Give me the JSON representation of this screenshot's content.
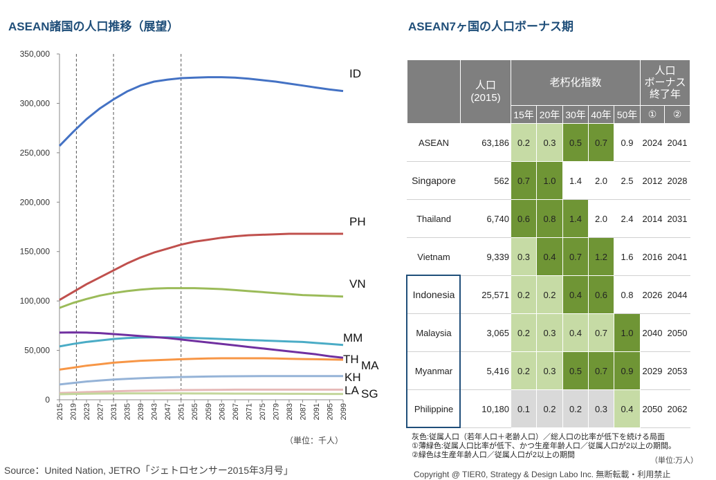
{
  "left_title": "ASEAN諸国の人口推移（展望）",
  "right_title": "ASEAN7ヶ国の人口ボーナス期",
  "chart_data": {
    "type": "line",
    "title": "ASEAN諸国の人口推移（展望）",
    "x": [
      2015,
      2019,
      2023,
      2027,
      2031,
      2035,
      2039,
      2043,
      2047,
      2051,
      2055,
      2059,
      2063,
      2067,
      2071,
      2075,
      2079,
      2083,
      2087,
      2091,
      2095,
      2099
    ],
    "x_tick_labels": [
      "2015",
      "2019",
      "2023",
      "2027",
      "2031",
      "2035",
      "2039",
      "2043",
      "2047",
      "2051",
      "2055",
      "2059",
      "2063",
      "2067",
      "2071",
      "2075",
      "2079",
      "2083",
      "2087",
      "2091",
      "2095",
      "2099"
    ],
    "ylim": [
      0,
      350000
    ],
    "y_ticks": [
      "0",
      "50,000",
      "100,000",
      "150,000",
      "200,000",
      "250,000",
      "300,000",
      "350,000"
    ],
    "y_tick_values": [
      0,
      50000,
      100000,
      150000,
      200000,
      250000,
      300000,
      350000
    ],
    "vertical_lines": [
      2020,
      2031,
      2051
    ],
    "unit": "（単位：千人）",
    "grid": false,
    "series": [
      {
        "name": "ID",
        "color": "#4472c4",
        "values": [
          257000,
          271000,
          284000,
          295000,
          304000,
          312000,
          318000,
          322000,
          324000,
          325500,
          326000,
          326500,
          326500,
          326000,
          325000,
          323500,
          322000,
          320000,
          318000,
          316000,
          314000,
          312500
        ]
      },
      {
        "name": "PH",
        "color": "#c0504d",
        "values": [
          101000,
          109000,
          117000,
          124000,
          131000,
          138000,
          144000,
          149000,
          153000,
          157000,
          160000,
          162000,
          164000,
          165500,
          166500,
          167000,
          167500,
          168000,
          168000,
          168000,
          168000,
          168000
        ]
      },
      {
        "name": "VN",
        "color": "#9bbb59",
        "values": [
          93000,
          98000,
          102000,
          105500,
          108000,
          110000,
          111500,
          112500,
          113000,
          113000,
          113000,
          112500,
          112000,
          111000,
          110000,
          109000,
          108000,
          107000,
          106000,
          105500,
          105000,
          104500
        ]
      },
      {
        "name": "MM",
        "color": "#4bacc6",
        "values": [
          54000,
          56500,
          58500,
          60000,
          61500,
          62500,
          63000,
          63200,
          63200,
          63000,
          62500,
          62000,
          61500,
          61000,
          60500,
          60000,
          59500,
          59000,
          58500,
          57500,
          56500,
          55500
        ]
      },
      {
        "name": "TH",
        "color": "#7030a0",
        "values": [
          68000,
          68200,
          68000,
          67500,
          66500,
          65500,
          64500,
          63500,
          62500,
          61000,
          59500,
          58000,
          56500,
          55000,
          53500,
          52000,
          50500,
          49000,
          47500,
          46000,
          44000,
          42500
        ]
      },
      {
        "name": "MA",
        "color": "#f79646",
        "values": [
          30500,
          32500,
          34500,
          36000,
          37500,
          38500,
          39500,
          40000,
          40500,
          41000,
          41500,
          41800,
          42000,
          42000,
          42000,
          42000,
          41800,
          41500,
          41200,
          41000,
          40800,
          40500
        ]
      },
      {
        "name": "KH",
        "color": "#95b3d7",
        "values": [
          15500,
          17000,
          18500,
          19500,
          20500,
          21200,
          21800,
          22300,
          22700,
          23000,
          23300,
          23500,
          23700,
          23800,
          23900,
          24000,
          24000,
          24000,
          24000,
          24000,
          24000,
          24000
        ]
      },
      {
        "name": "LA",
        "color": "#e6b9b8",
        "values": [
          6800,
          7300,
          7800,
          8200,
          8600,
          8900,
          9200,
          9400,
          9600,
          9800,
          9900,
          10000,
          10100,
          10200,
          10200,
          10200,
          10200,
          10200,
          10200,
          10200,
          10200,
          10200
        ]
      },
      {
        "name": "SG",
        "color": "#c3d69b",
        "values": [
          5600,
          5900,
          6100,
          6300,
          6400,
          6450,
          6500,
          6500,
          6500,
          6450,
          6400,
          6350,
          6300,
          6250,
          6200,
          6150,
          6100,
          6050,
          6000,
          5950,
          5900,
          5850
        ]
      }
    ]
  },
  "table": {
    "headers": {
      "pop_label": "人口",
      "pop_sub": "(2015)",
      "aging": "老朽化指数",
      "bonus_l1": "人口",
      "bonus_l2": "ボーナス",
      "bonus_l3": "終了年",
      "years": [
        "15年",
        "20年",
        "30年",
        "40年",
        "50年"
      ],
      "bonus_cols": [
        "①",
        "②"
      ]
    },
    "rows": [
      {
        "country": "ASEAN",
        "pop": "63,186",
        "vals": [
          "0.2",
          "0.3",
          "0.5",
          "0.7",
          "0.9"
        ],
        "cls": [
          "light",
          "light",
          "dark",
          "dark",
          "none"
        ],
        "end1": "2024",
        "end2": "2041"
      },
      {
        "country": "Singapore",
        "pop": "562",
        "vals": [
          "0.7",
          "1.0",
          "1.4",
          "2.0",
          "2.5"
        ],
        "cls": [
          "dark",
          "dark",
          "none",
          "none",
          "none"
        ],
        "end1": "2012",
        "end2": "2028"
      },
      {
        "country": "Thailand",
        "pop": "6,740",
        "vals": [
          "0.6",
          "0.8",
          "1.4",
          "2.0",
          "2.4"
        ],
        "cls": [
          "dark",
          "dark",
          "dark",
          "none",
          "none"
        ],
        "end1": "2014",
        "end2": "2031"
      },
      {
        "country": "Vietnam",
        "pop": "9,339",
        "vals": [
          "0.3",
          "0.4",
          "0.7",
          "1.2",
          "1.6"
        ],
        "cls": [
          "light",
          "dark",
          "dark",
          "dark",
          "none"
        ],
        "end1": "2016",
        "end2": "2041"
      },
      {
        "country": "Indonesia",
        "pop": "25,571",
        "vals": [
          "0.2",
          "0.2",
          "0.4",
          "0.6",
          "0.8"
        ],
        "cls": [
          "light",
          "light",
          "dark",
          "dark",
          "none"
        ],
        "end1": "2026",
        "end2": "2044"
      },
      {
        "country": "Malaysia",
        "pop": "3,065",
        "vals": [
          "0.2",
          "0.3",
          "0.4",
          "0.7",
          "1.0"
        ],
        "cls": [
          "light",
          "light",
          "light",
          "light",
          "dark"
        ],
        "end1": "2040",
        "end2": "2050"
      },
      {
        "country": "Myanmar",
        "pop": "5,416",
        "vals": [
          "0.2",
          "0.3",
          "0.5",
          "0.7",
          "0.9"
        ],
        "cls": [
          "light",
          "light",
          "dark",
          "dark",
          "dark"
        ],
        "end1": "2029",
        "end2": "2053"
      },
      {
        "country": "Philippine",
        "pop": "10,180",
        "vals": [
          "0.1",
          "0.2",
          "0.2",
          "0.3",
          "0.4"
        ],
        "cls": [
          "gray",
          "gray",
          "gray",
          "gray",
          "light"
        ],
        "end1": "2050",
        "end2": "2062"
      }
    ],
    "colors": {
      "light": "#c6dba5",
      "dark": "#6f9535",
      "gray": "#d9d9d9",
      "header": "#7f7f7f"
    }
  },
  "notes": [
    "灰色:従属人口（若年人口＋老齢人口）／総人口の比率が低下を続ける局面",
    "①薄緑色:従属人口比率が低下、かつ生産年齢人口／従属人口が2以上の期間。",
    "②緑色は生産年齢人口／従属人口が2以上の期間"
  ],
  "unit_right": "（単位:万人）",
  "source": "Source：United Nation, JETRO「ジェトロセンサー2015年3月号」",
  "copyright": "Copyright @ TIER0, Strategy & Design Labo Inc. 無断転載・利用禁止"
}
